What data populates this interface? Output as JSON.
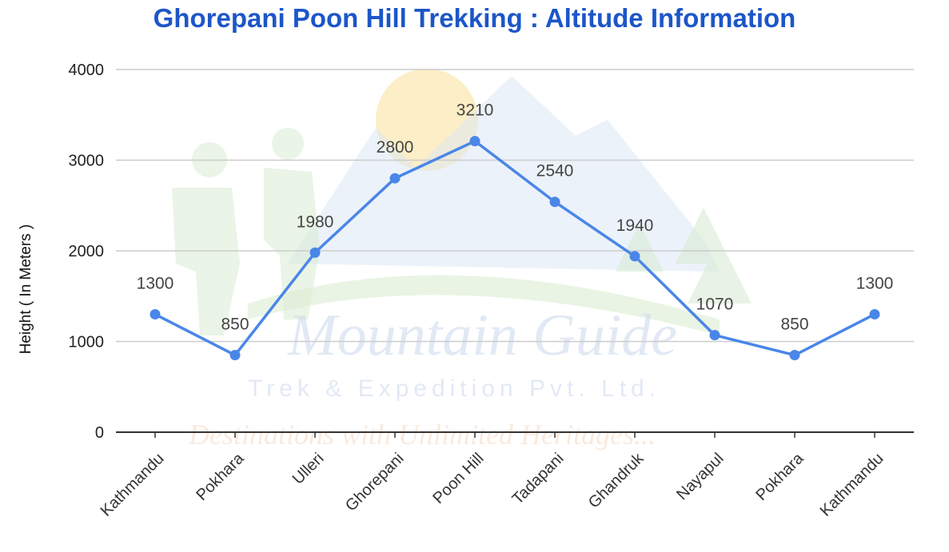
{
  "chart_data": {
    "type": "line",
    "title": "Ghorepani Poon Hill Trekking : Altitude Information",
    "xlabel": "",
    "ylabel": "Height ( In Meters )",
    "ylim": [
      0,
      4000
    ],
    "yticks": [
      "0",
      "1000",
      "2000",
      "3000",
      "4000"
    ],
    "grid": true,
    "legend": "none",
    "categories": [
      "Kathmandu",
      "Pokhara",
      "Ulleri",
      "Ghorepani",
      "Poon Hill",
      "Tadapani",
      "Ghandruk",
      "Nayapul",
      "Pokhara",
      "Kathmandu"
    ],
    "series": [
      {
        "values": [
          1300,
          850,
          1980,
          2800,
          3210,
          2540,
          1940,
          1070,
          850,
          1300
        ]
      }
    ],
    "data_labels": [
      "1300",
      "850",
      "1980",
      "2800",
      "3210",
      "2540",
      "1940",
      "1070",
      "850",
      "1300"
    ],
    "colors": {
      "title": "#1c56c9",
      "line": "#4a86e8",
      "grid": "#cccccc",
      "axis": "#333333"
    }
  },
  "watermark": {
    "brand": "Mountain Guide",
    "company": "Trek & Expedition Pvt. Ltd.",
    "tagline": "Destinations with Unlimited Heritages..."
  }
}
